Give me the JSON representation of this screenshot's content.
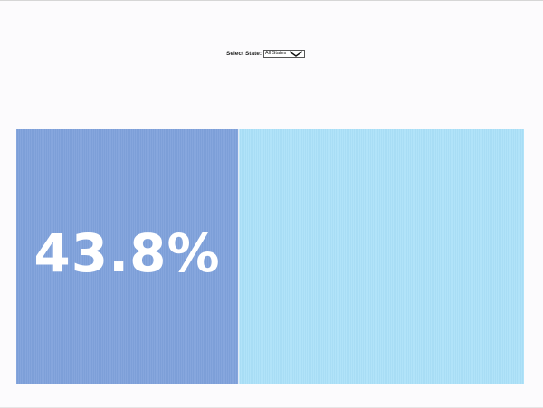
{
  "filter": {
    "label": "Select State:",
    "selected": "All States"
  },
  "chart_data": {
    "type": "bar",
    "orientation": "horizontal-stacked",
    "categories": [
      "All States"
    ],
    "series": [
      {
        "values": [
          43.8
        ],
        "color": "#86a6dd"
      },
      {
        "values": [
          56.2
        ],
        "color": "#b1e3f9"
      }
    ],
    "data_labels": [
      "43.8%"
    ],
    "xlim": [
      0,
      100
    ]
  }
}
